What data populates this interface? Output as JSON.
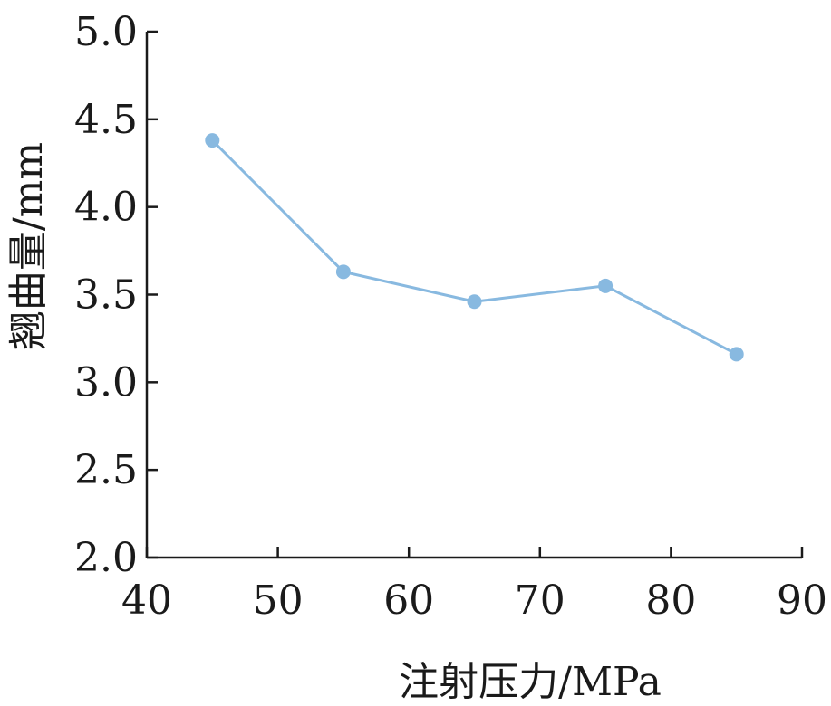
{
  "chart_data": {
    "type": "line",
    "xlabel": "注射压力/MPa",
    "ylabel": "翘曲量/mm",
    "xlim": [
      40,
      90
    ],
    "ylim": [
      2.0,
      5.0
    ],
    "x_ticks": [
      "40",
      "50",
      "60",
      "70",
      "80",
      "90"
    ],
    "y_ticks": [
      "2.0",
      "2.5",
      "3.0",
      "3.5",
      "4.0",
      "4.5",
      "5.0"
    ],
    "grid": false,
    "series": [
      {
        "color": "#88b9e0",
        "x": [
          45,
          55,
          65,
          75,
          85
        ],
        "y": [
          4.38,
          3.63,
          3.46,
          3.55,
          3.16
        ]
      }
    ]
  }
}
